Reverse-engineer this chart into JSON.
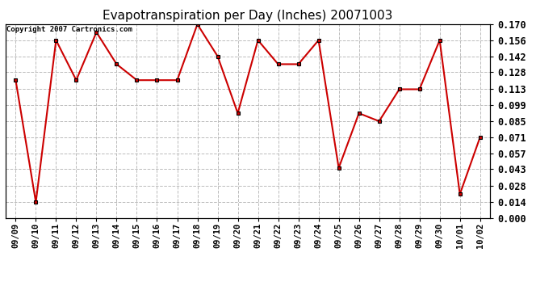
{
  "title": "Evapotranspiration per Day (Inches) 20071003",
  "copyright_text": "Copyright 2007 Cartronics.com",
  "dates": [
    "09/09",
    "09/10",
    "09/11",
    "09/12",
    "09/13",
    "09/14",
    "09/15",
    "09/16",
    "09/17",
    "09/18",
    "09/19",
    "09/20",
    "09/21",
    "09/22",
    "09/23",
    "09/24",
    "09/25",
    "09/26",
    "09/27",
    "09/28",
    "09/29",
    "09/30",
    "10/01",
    "10/02"
  ],
  "values": [
    0.121,
    0.014,
    0.156,
    0.121,
    0.163,
    0.135,
    0.121,
    0.121,
    0.121,
    0.17,
    0.142,
    0.092,
    0.156,
    0.135,
    0.135,
    0.156,
    0.044,
    0.092,
    0.085,
    0.113,
    0.113,
    0.156,
    0.021,
    0.071
  ],
  "line_color": "#cc0000",
  "marker_color": "#000000",
  "bg_color": "#ffffff",
  "grid_color": "#bbbbbb",
  "ylim": [
    0.0,
    0.17
  ],
  "yticks": [
    0.0,
    0.014,
    0.028,
    0.043,
    0.057,
    0.071,
    0.085,
    0.099,
    0.113,
    0.128,
    0.142,
    0.156,
    0.17
  ],
  "title_fontsize": 11,
  "copyright_fontsize": 6.5,
  "tick_fontsize": 8.5,
  "xtick_fontsize": 7.5
}
